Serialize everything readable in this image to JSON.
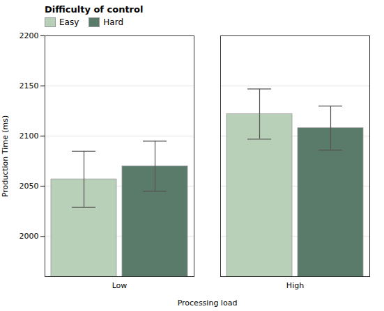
{
  "chart_data": {
    "type": "bar",
    "categories": [
      "Low",
      "High"
    ],
    "series": [
      {
        "name": "Easy",
        "color": "#b8cfb8",
        "values": [
          2057,
          2122
        ],
        "errors": [
          28,
          25
        ]
      },
      {
        "name": "Hard",
        "color": "#5a7a6a",
        "values": [
          2070,
          2108
        ],
        "errors": [
          25,
          22
        ]
      }
    ],
    "xlabel": "Processing load",
    "ylabel": "Production Time (ms)",
    "legend_title": "Difficulty of control",
    "ylim": [
      1960,
      2200
    ],
    "yticks": [
      2000,
      2050,
      2100,
      2150,
      2200
    ],
    "grid": true,
    "legend": "upper left"
  }
}
